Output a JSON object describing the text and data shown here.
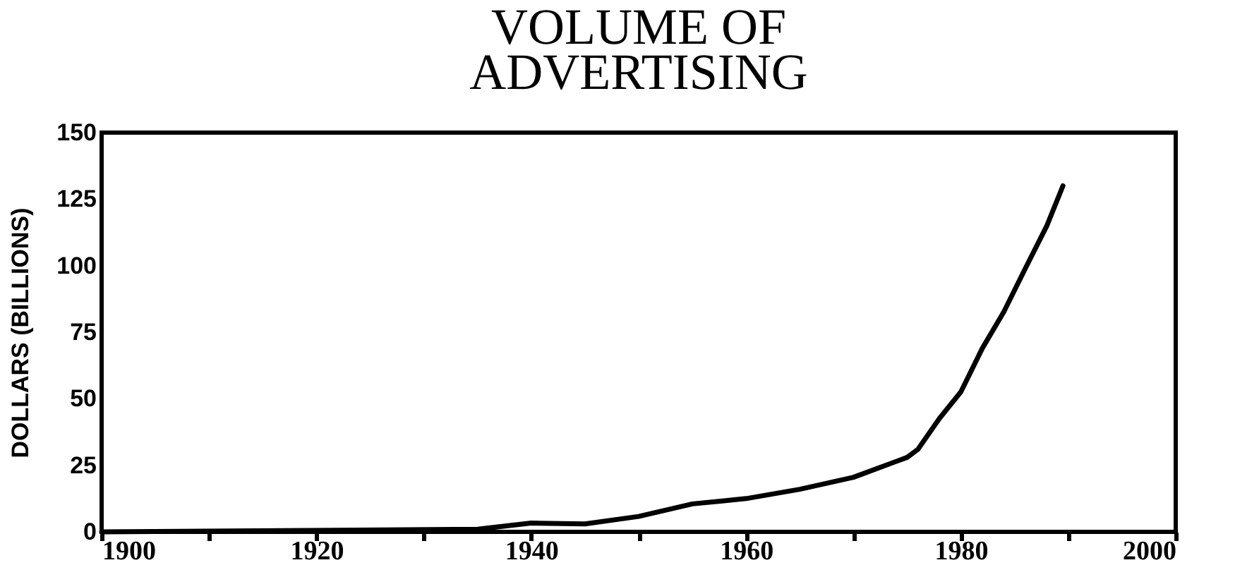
{
  "chart_data": {
    "type": "line",
    "title": "VOLUME OF\nADVERTISING",
    "ylabel": "DOLLARS (BILLIONS)",
    "x": [
      1900,
      1935,
      1940,
      1945,
      1950,
      1955,
      1960,
      1965,
      1970,
      1975,
      1976,
      1978,
      1980,
      1982,
      1984,
      1986,
      1988,
      1989.5
    ],
    "series": [
      {
        "color": "#000000",
        "values": [
          0,
          1,
          3.3,
          3,
          5.8,
          10.5,
          12.5,
          16,
          20.5,
          28,
          31,
          42.6,
          52.6,
          69,
          82.7,
          99,
          115,
          130
        ]
      }
    ],
    "xlim": [
      1900,
      2000
    ],
    "ylim": [
      0,
      150
    ],
    "xticks": [
      1900,
      {
        "value": 1910,
        "label": null
      },
      1920,
      {
        "value": 1930,
        "label": null
      },
      1940,
      {
        "value": 1950,
        "label": null
      },
      1960,
      {
        "value": 1970,
        "label": null
      },
      1980,
      {
        "value": 1990,
        "label": null
      },
      2000
    ],
    "yticks": [
      0,
      25,
      50,
      75,
      100,
      125,
      150
    ],
    "grid": false,
    "legend": false,
    "marker": "none",
    "line_style": "solid"
  }
}
